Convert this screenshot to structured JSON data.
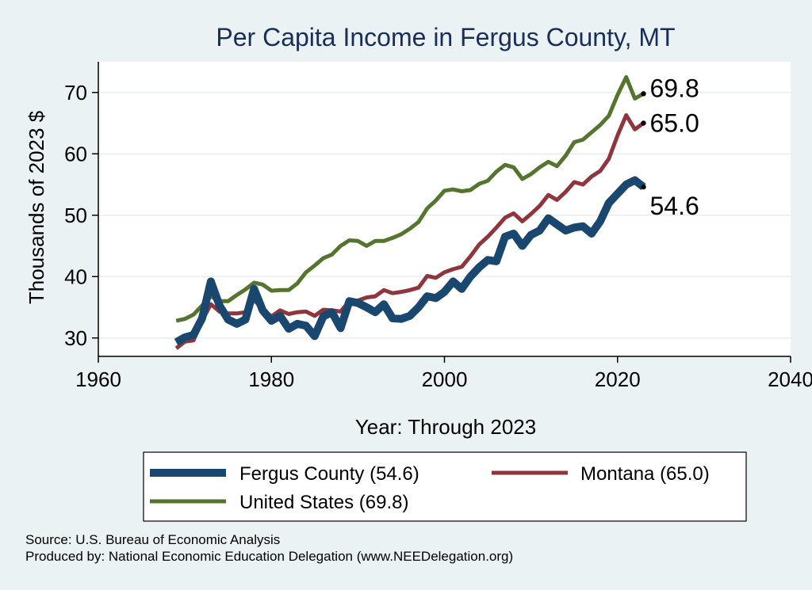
{
  "chart_data": {
    "type": "line",
    "title": "Per Capita Income in Fergus County, MT",
    "xlabel": "Year: Through 2023",
    "ylabel": "Thousands of 2023 $",
    "xlim": [
      1960,
      2040
    ],
    "ylim": [
      27,
      75
    ],
    "x_ticks": [
      1960,
      1980,
      2000,
      2020,
      2040
    ],
    "y_ticks": [
      30,
      40,
      50,
      60,
      70
    ],
    "grid": "horizontal",
    "legend_position": "bottom",
    "x": [
      1969,
      1970,
      1971,
      1972,
      1973,
      1974,
      1975,
      1976,
      1977,
      1978,
      1979,
      1980,
      1981,
      1982,
      1983,
      1984,
      1985,
      1986,
      1987,
      1988,
      1989,
      1990,
      1991,
      1992,
      1993,
      1994,
      1995,
      1996,
      1997,
      1998,
      1999,
      2000,
      2001,
      2002,
      2003,
      2004,
      2005,
      2006,
      2007,
      2008,
      2009,
      2010,
      2011,
      2012,
      2013,
      2014,
      2015,
      2016,
      2017,
      2018,
      2019,
      2020,
      2021,
      2022,
      2023
    ],
    "series": [
      {
        "name": "Fergus County (54.6)",
        "color": "#1a476f",
        "end_label": "54.6",
        "values": [
          29.3,
          30.1,
          30.5,
          33.2,
          39.2,
          35.3,
          33.0,
          32.3,
          33.0,
          38.0,
          34.5,
          32.8,
          33.6,
          31.5,
          32.3,
          32.0,
          30.3,
          33.5,
          34.2,
          31.6,
          36.0,
          35.7,
          35.0,
          34.2,
          35.5,
          33.2,
          33.1,
          33.6,
          35.0,
          36.8,
          36.5,
          37.5,
          39.2,
          38.0,
          40.0,
          41.5,
          42.7,
          42.5,
          46.5,
          47.0,
          45.0,
          46.8,
          47.5,
          49.5,
          48.5,
          47.5,
          48.0,
          48.2,
          47.0,
          49.0,
          52.0,
          53.5,
          55.0,
          55.7,
          54.6
        ]
      },
      {
        "name": "Montana (65.0)",
        "color": "#90353b",
        "end_label": "65.0",
        "values": [
          28.3,
          29.4,
          29.6,
          32.8,
          35.5,
          34.3,
          34.0,
          34.0,
          34.2,
          36.2,
          34.7,
          33.5,
          34.5,
          33.9,
          34.2,
          34.3,
          33.6,
          34.6,
          34.5,
          34.3,
          36.0,
          36.1,
          36.6,
          36.8,
          37.8,
          37.3,
          37.5,
          37.8,
          38.2,
          40.1,
          39.8,
          40.7,
          41.2,
          41.6,
          43.3,
          45.2,
          46.5,
          48.0,
          49.6,
          50.3,
          49.0,
          50.2,
          51.5,
          53.3,
          52.5,
          53.8,
          55.4,
          55.0,
          56.3,
          57.2,
          59.2,
          63.0,
          66.3,
          64.0,
          65.0
        ]
      },
      {
        "name": "United States (69.8)",
        "color": "#55752f",
        "end_label": "69.8",
        "values": [
          32.8,
          33.1,
          33.8,
          35.3,
          36.8,
          36.0,
          36.0,
          37.0,
          37.9,
          39.0,
          38.7,
          37.7,
          37.8,
          37.8,
          38.9,
          40.7,
          41.8,
          43.0,
          43.6,
          45.0,
          45.9,
          45.8,
          45.0,
          45.8,
          45.8,
          46.3,
          46.9,
          47.8,
          48.9,
          51.1,
          52.4,
          54.0,
          54.2,
          53.9,
          54.1,
          55.1,
          55.6,
          57.1,
          58.2,
          57.8,
          55.9,
          56.7,
          57.8,
          58.7,
          58.0,
          59.7,
          61.9,
          62.3,
          63.5,
          64.7,
          66.2,
          69.6,
          72.5,
          69.0,
          69.8
        ]
      }
    ]
  },
  "source_lines": [
    "Source: U.S. Bureau of Economic Analysis",
    "Produced by: National Economic Education Delegation (www.NEEDelegation.org)"
  ]
}
